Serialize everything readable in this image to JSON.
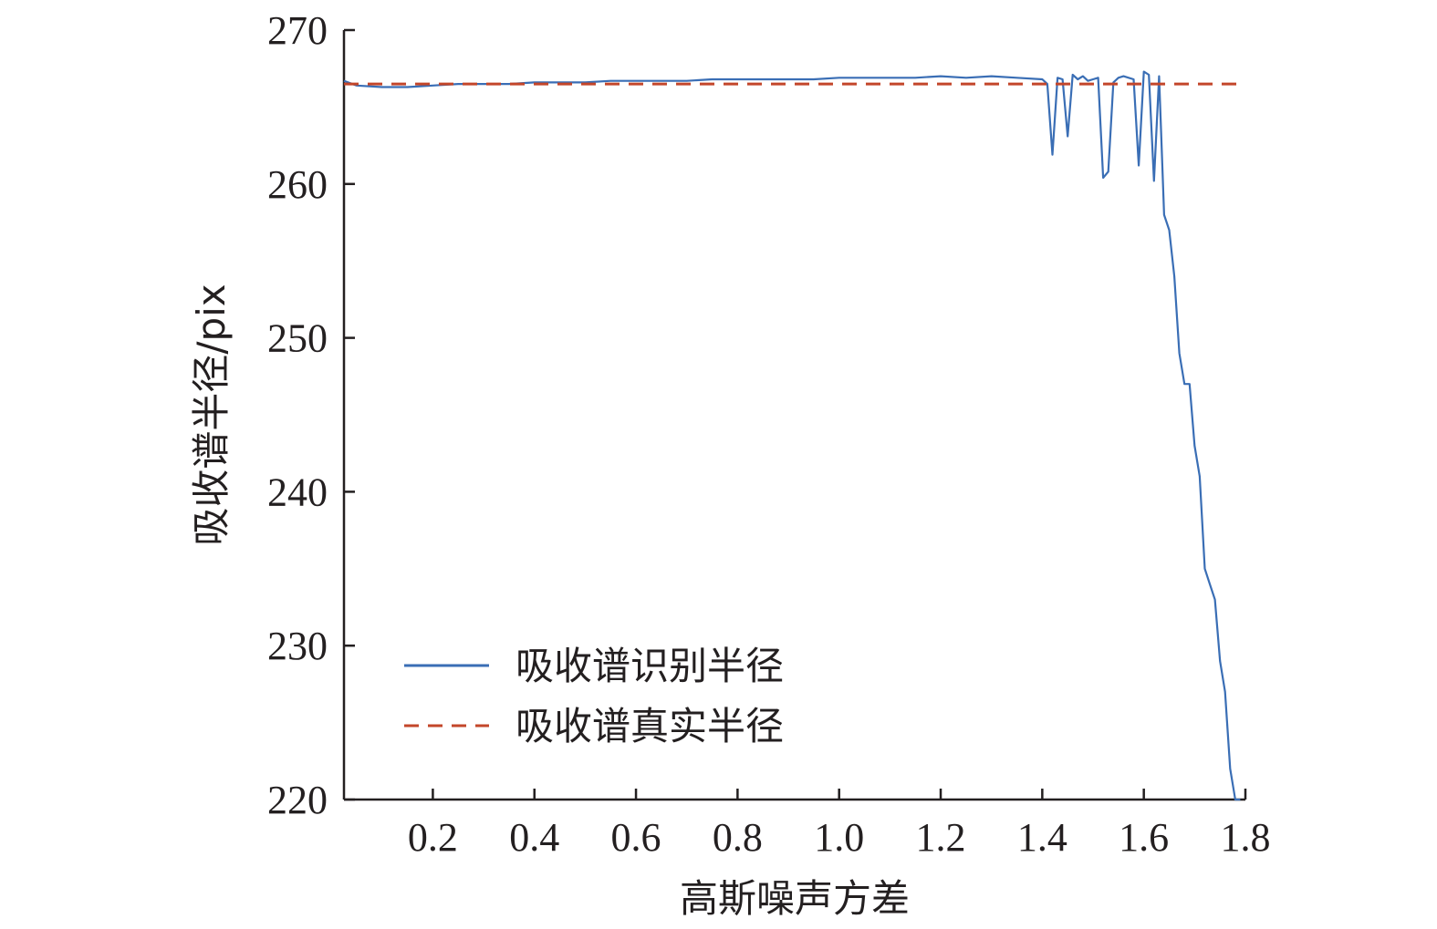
{
  "chart_data": {
    "type": "line",
    "xlabel": "高斯噪声方差",
    "ylabel": "吸收谱半径/pix",
    "xlim": [
      0.025,
      1.8
    ],
    "ylim": [
      220,
      270
    ],
    "xticks": [
      0.2,
      0.4,
      0.6,
      0.8,
      1.0,
      1.2,
      1.4,
      1.6,
      1.8
    ],
    "xtick_labels": [
      "0.2",
      "0.4",
      "0.6",
      "0.8",
      "1.0",
      "1.2",
      "1.4",
      "1.6",
      "1.8"
    ],
    "yticks": [
      220,
      230,
      240,
      250,
      260,
      270
    ],
    "ytick_labels": [
      "220",
      "230",
      "240",
      "250",
      "260",
      "270"
    ],
    "grid": false,
    "legend_position": "lower-left",
    "series": [
      {
        "name": "吸收谱识别半径",
        "color": "#3a6eb5",
        "style": "solid",
        "x": [
          0.025,
          0.05,
          0.1,
          0.15,
          0.2,
          0.25,
          0.3,
          0.35,
          0.4,
          0.45,
          0.5,
          0.55,
          0.6,
          0.65,
          0.7,
          0.75,
          0.8,
          0.85,
          0.9,
          0.95,
          1.0,
          1.05,
          1.1,
          1.15,
          1.2,
          1.25,
          1.3,
          1.35,
          1.4,
          1.41,
          1.42,
          1.43,
          1.44,
          1.45,
          1.46,
          1.47,
          1.48,
          1.49,
          1.5,
          1.51,
          1.52,
          1.53,
          1.54,
          1.55,
          1.56,
          1.57,
          1.58,
          1.59,
          1.6,
          1.61,
          1.62,
          1.63,
          1.64,
          1.65,
          1.66,
          1.67,
          1.68,
          1.69,
          1.7,
          1.71,
          1.72,
          1.73,
          1.74,
          1.75,
          1.76,
          1.77,
          1.78,
          1.79
        ],
        "y": [
          266.7,
          266.4,
          266.3,
          266.3,
          266.4,
          266.5,
          266.5,
          266.5,
          266.6,
          266.6,
          266.6,
          266.7,
          266.7,
          266.7,
          266.7,
          266.8,
          266.8,
          266.8,
          266.8,
          266.8,
          266.9,
          266.9,
          266.9,
          266.9,
          267.0,
          266.9,
          267.0,
          266.9,
          266.8,
          266.5,
          261.9,
          266.9,
          266.8,
          263.1,
          267.1,
          266.8,
          267.0,
          266.7,
          266.8,
          266.9,
          260.4,
          260.8,
          266.6,
          266.9,
          267.0,
          266.9,
          266.8,
          261.2,
          267.3,
          267.1,
          260.2,
          267.0,
          258.0,
          257.0,
          254.0,
          249.0,
          247.0,
          247.0,
          243.0,
          241.0,
          235.0,
          234.0,
          233.0,
          229.0,
          227.0,
          222.0,
          220.0,
          220.0
        ]
      },
      {
        "name": "吸收谱真实半径",
        "color": "#c3462a",
        "style": "dashed",
        "x": [
          0.025,
          1.8
        ],
        "y": [
          266.5,
          266.5
        ]
      }
    ]
  }
}
